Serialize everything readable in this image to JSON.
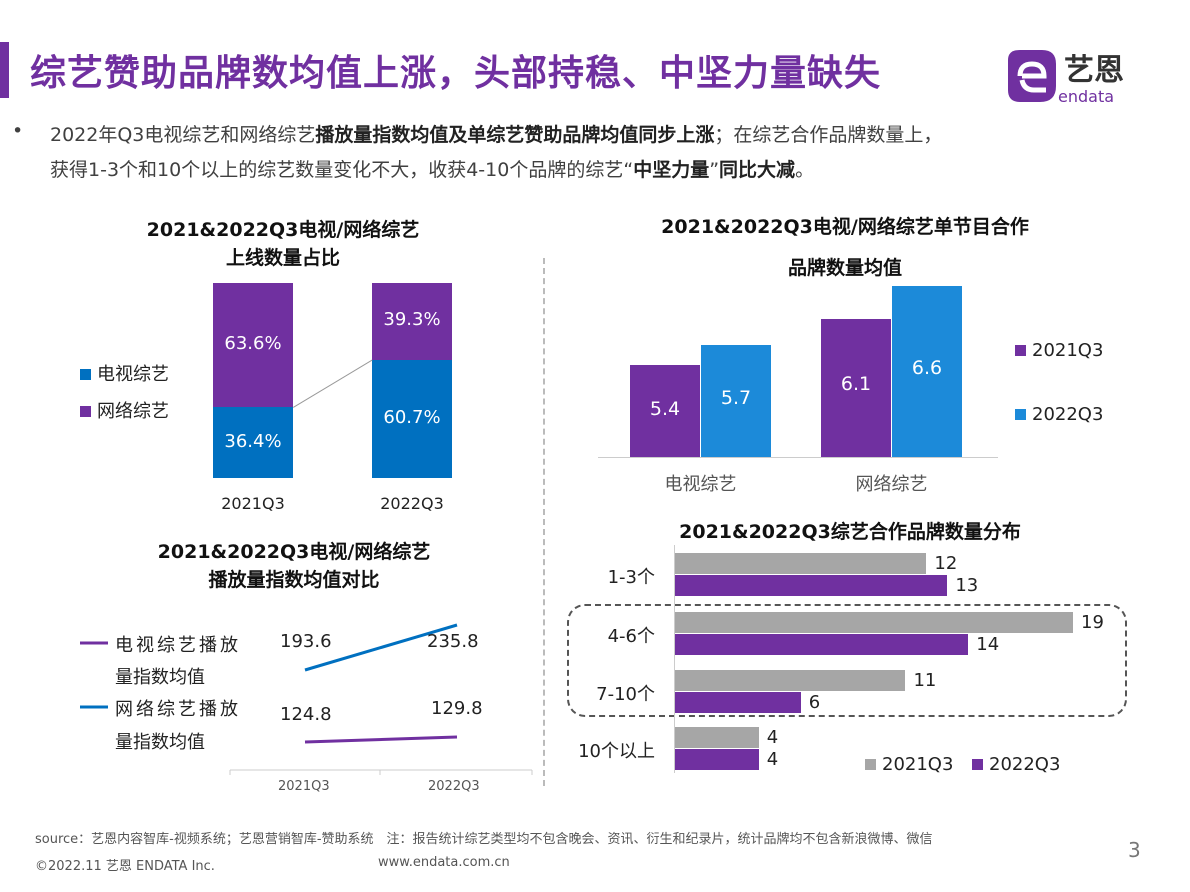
{
  "header": {
    "title": "综艺赞助品牌数均值上涨，头部持稳、中坚力量缺失",
    "logo_text": "艺恩",
    "logo_sub": "endata"
  },
  "bullet": {
    "line1_a": "2022年Q3电视综艺和网络综艺",
    "line1_b": "播放量指数均值及单综艺赞助品牌均值同步上涨",
    "line1_c": "；在综艺合作品牌数量上，",
    "line2_a": "获得1-3个和10个以上的综艺数量变化不大，收获4-10个品牌的综艺“",
    "line2_b": "中坚力量",
    "line2_c": "”",
    "line2_d": "同比大减",
    "line2_e": "。"
  },
  "colors": {
    "purple": "#7030A0",
    "blue": "#0070C0",
    "light_blue": "#1C8AD9",
    "gray": "#A6A6A6"
  },
  "chart_data": [
    {
      "type": "bar",
      "stacked": true,
      "title": "2021&2022Q3电视/网络综艺",
      "title2": "上线数量占比",
      "categories": [
        "2021Q3",
        "2022Q3"
      ],
      "series": [
        {
          "name": "电视综艺",
          "values": [
            "36.4%",
            "60.7%"
          ],
          "numeric": [
            36.4,
            60.7
          ]
        },
        {
          "name": "网络综艺",
          "values": [
            "63.6%",
            "39.3%"
          ],
          "numeric": [
            63.6,
            39.3
          ]
        }
      ],
      "legend": "left"
    },
    {
      "type": "bar",
      "title": "2021&2022Q3电视/网络综艺单节目合作",
      "title2": "品牌数量均值",
      "categories": [
        "电视综艺",
        "网络综艺"
      ],
      "ylim": [
        4,
        7
      ],
      "series": [
        {
          "name": "2021Q3",
          "values": [
            5.4,
            6.1
          ]
        },
        {
          "name": "2022Q3",
          "values": [
            5.7,
            6.6
          ]
        }
      ],
      "legend": "right"
    },
    {
      "type": "line",
      "title": "2021&2022Q3电视/网络综艺",
      "title2": "播放量指数均值对比",
      "categories": [
        "2021Q3",
        "2022Q3"
      ],
      "series": [
        {
          "name": "电视综艺播放量指数均值",
          "values": [
            124.8,
            129.8
          ]
        },
        {
          "name": "网络综艺播放量指数均值",
          "values": [
            193.6,
            235.8
          ]
        }
      ],
      "legend_lines": [
        [
          "电视综艺播放",
          "量指数均值"
        ],
        [
          "网络综艺播放",
          "量指数均值"
        ]
      ],
      "legend": "left"
    },
    {
      "type": "bar",
      "orientation": "horizontal",
      "title": "2021&2022Q3综艺合作品牌数量分布",
      "categories": [
        "1-3个",
        "4-6个",
        "7-10个",
        "10个以上"
      ],
      "series": [
        {
          "name": "2021Q3",
          "values": [
            12,
            19,
            11,
            4
          ]
        },
        {
          "name": "2022Q3",
          "values": [
            13,
            14,
            6,
            4
          ]
        }
      ],
      "legend": "bottom-right",
      "highlight": [
        "4-6个",
        "7-10个"
      ]
    }
  ],
  "footer": {
    "source": "source：艺恩内容智库-视频系统；艺恩营销智库-赞助系统　注：报告统计综艺类型均不包含晚会、资讯、衍生和纪录片，统计品牌均不包含新浪微博、微信",
    "copyright": "©2022.11 艺恩 ENDATA Inc.",
    "url": "www.endata.com.cn",
    "page": "3"
  }
}
